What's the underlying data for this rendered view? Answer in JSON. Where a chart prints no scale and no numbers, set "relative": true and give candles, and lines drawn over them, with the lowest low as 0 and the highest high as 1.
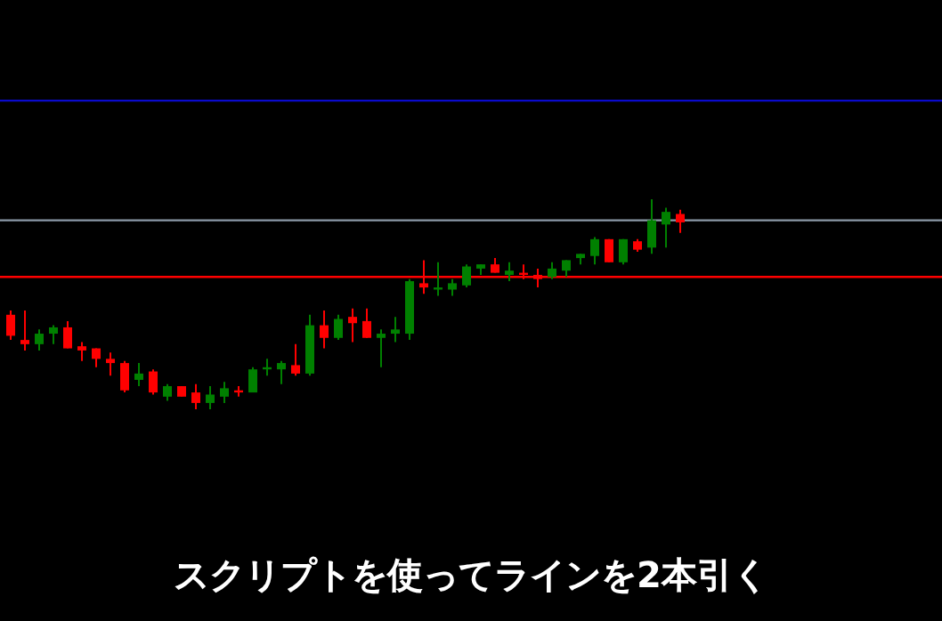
{
  "chart_data": {
    "type": "candlestick",
    "relative": true,
    "title": "スクリプトを使ってラインを2本引く",
    "categories": [
      null,
      null,
      null,
      null,
      null,
      null,
      null,
      null,
      null,
      null,
      null,
      null,
      null,
      null,
      null,
      null,
      null,
      null,
      null,
      null,
      null,
      null,
      null,
      null,
      null,
      null,
      null,
      null,
      null,
      null,
      null,
      null,
      null,
      null,
      null,
      null,
      null,
      null,
      null,
      null,
      null,
      null,
      null,
      null,
      null,
      null,
      null,
      null
    ],
    "colors": [
      "#ff0000",
      "#ff0000",
      "#008000",
      "#008000",
      "#ff0000",
      "#ff0000",
      "#ff0000",
      "#ff0000",
      "#ff0000",
      "#008000",
      "#ff0000",
      "#008000",
      "#ff0000",
      "#ff0000",
      "#008000",
      "#008000",
      "#ff0000",
      "#008000",
      "#008000",
      "#008000",
      "#ff0000",
      "#008000",
      "#ff0000",
      "#008000",
      "#ff0000",
      "#ff0000",
      "#008000",
      "#008000",
      "#008000",
      "#ff0000",
      "#008000",
      "#008000",
      "#008000",
      "#008000",
      "#ff0000",
      "#008000",
      "#ff0000",
      "#ff0000",
      "#008000",
      "#008000",
      "#008000",
      "#008000",
      "#ff0000",
      "#008000",
      "#ff0000",
      "#008000",
      "#008000",
      "#ff0000"
    ],
    "ohlc": [
      [
        0.45,
        0.47,
        0.33,
        0.35
      ],
      [
        0.33,
        0.47,
        0.28,
        0.31
      ],
      [
        0.31,
        0.38,
        0.28,
        0.36
      ],
      [
        0.36,
        0.4,
        0.31,
        0.39
      ],
      [
        0.39,
        0.42,
        0.29,
        0.29
      ],
      [
        0.3,
        0.32,
        0.23,
        0.28
      ],
      [
        0.29,
        0.29,
        0.2,
        0.24
      ],
      [
        0.24,
        0.27,
        0.16,
        0.22
      ],
      [
        0.22,
        0.23,
        0.08,
        0.09
      ],
      [
        0.14,
        0.22,
        0.11,
        0.17
      ],
      [
        0.18,
        0.19,
        0.07,
        0.08
      ],
      [
        0.06,
        0.12,
        0.04,
        0.11
      ],
      [
        0.11,
        0.11,
        0.06,
        0.06
      ],
      [
        0.08,
        0.12,
        0,
        0.03
      ],
      [
        0.03,
        0.11,
        0,
        0.07
      ],
      [
        0.06,
        0.13,
        0.03,
        0.1
      ],
      [
        0.09,
        0.11,
        0.06,
        0.08
      ],
      [
        0.08,
        0.2,
        0.08,
        0.19
      ],
      [
        0.19,
        0.24,
        0.16,
        0.2
      ],
      [
        0.19,
        0.23,
        0.12,
        0.22
      ],
      [
        0.21,
        0.31,
        0.16,
        0.17
      ],
      [
        0.17,
        0.45,
        0.16,
        0.4
      ],
      [
        0.4,
        0.47,
        0.29,
        0.34
      ],
      [
        0.34,
        0.45,
        0.33,
        0.43
      ],
      [
        0.44,
        0.48,
        0.32,
        0.41
      ],
      [
        0.42,
        0.48,
        0.34,
        0.34
      ],
      [
        0.34,
        0.38,
        0.2,
        0.36
      ],
      [
        0.36,
        0.44,
        0.32,
        0.38
      ],
      [
        0.36,
        0.62,
        0.33,
        0.61
      ],
      [
        0.6,
        0.71,
        0.55,
        0.58
      ],
      [
        0.57,
        0.7,
        0.54,
        0.58
      ],
      [
        0.57,
        0.62,
        0.54,
        0.6
      ],
      [
        0.59,
        0.69,
        0.58,
        0.68
      ],
      [
        0.67,
        0.69,
        0.64,
        0.69
      ],
      [
        0.69,
        0.72,
        0.65,
        0.65
      ],
      [
        0.64,
        0.7,
        0.61,
        0.66
      ],
      [
        0.65,
        0.69,
        0.62,
        0.64
      ],
      [
        0.64,
        0.67,
        0.58,
        0.62
      ],
      [
        0.63,
        0.7,
        0.62,
        0.67
      ],
      [
        0.66,
        0.71,
        0.63,
        0.71
      ],
      [
        0.72,
        0.74,
        0.69,
        0.74
      ],
      [
        0.73,
        0.82,
        0.69,
        0.81
      ],
      [
        0.81,
        0.81,
        0.7,
        0.7
      ],
      [
        0.7,
        0.81,
        0.69,
        0.81
      ],
      [
        0.8,
        0.81,
        0.75,
        0.76
      ],
      [
        0.77,
        1.0,
        0.74,
        0.9
      ],
      [
        0.88,
        0.96,
        0.77,
        0.94
      ],
      [
        0.93,
        0.95,
        0.84,
        0.89
      ]
    ],
    "ref_lines": [
      {
        "axis": "y",
        "value": 1.47,
        "color": "#0a0acc"
      },
      {
        "axis": "y",
        "value": 0.9,
        "color": "#8c9aa8"
      },
      {
        "axis": "y",
        "value": 0.63,
        "color": "#ff0000"
      }
    ]
  }
}
